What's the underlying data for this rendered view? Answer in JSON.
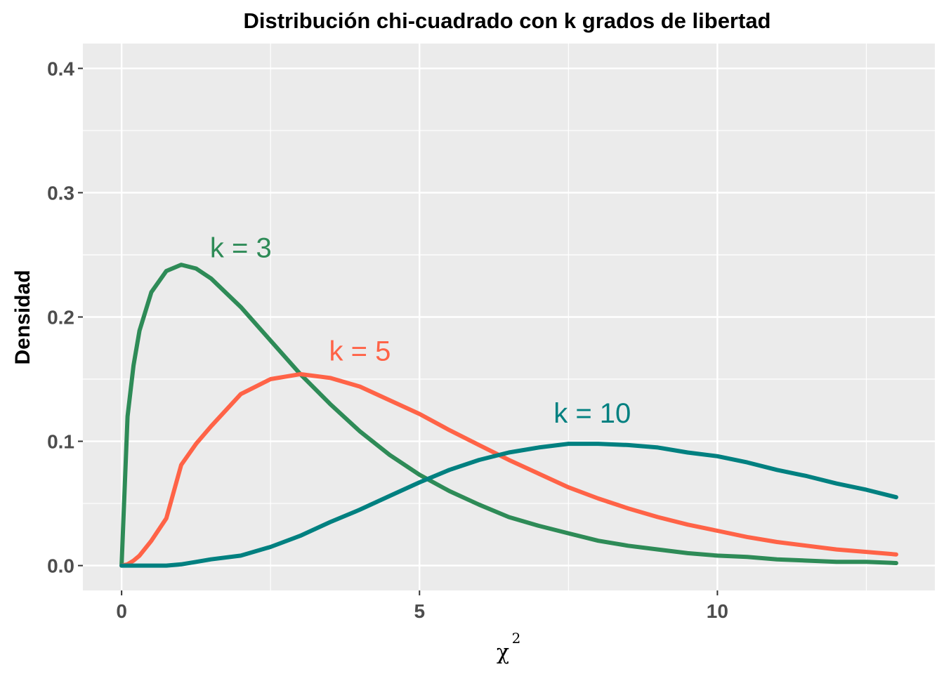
{
  "chart_data": {
    "type": "line",
    "title": "Distribución chi-cuadrado con k grados de libertad",
    "xlabel": "χ",
    "xlabel_superscript": "2",
    "ylabel": "Densidad",
    "xlim": [
      -0.65,
      13.65
    ],
    "ylim": [
      -0.02,
      0.42
    ],
    "xticks": [
      0,
      5,
      10
    ],
    "xtick_labels": [
      "0",
      "5",
      "10"
    ],
    "yticks": [
      0.0,
      0.1,
      0.2,
      0.3,
      0.4
    ],
    "ytick_labels": [
      "0.0",
      "0.1",
      "0.2",
      "0.3",
      "0.4"
    ],
    "grid": true,
    "background_color": "#ebebeb",
    "grid_color": "#ffffff",
    "x": [
      0,
      0.1,
      0.2,
      0.3,
      0.5,
      0.75,
      1,
      1.25,
      1.5,
      2,
      2.5,
      3,
      3.5,
      4,
      4.5,
      5,
      5.5,
      6,
      6.5,
      7,
      7.5,
      8,
      8.5,
      9,
      9.5,
      10,
      10.5,
      11,
      11.5,
      12,
      12.5,
      13
    ],
    "series": [
      {
        "name": "k = 3",
        "color": "#2e8b57",
        "values": [
          0,
          0.12,
          0.161,
          0.189,
          0.22,
          0.237,
          0.242,
          0.239,
          0.231,
          0.208,
          0.181,
          0.154,
          0.13,
          0.108,
          0.089,
          0.073,
          0.06,
          0.049,
          0.039,
          0.032,
          0.026,
          0.02,
          0.016,
          0.013,
          0.01,
          0.008,
          0.007,
          0.005,
          0.004,
          0.003,
          0.003,
          0.002
        ],
        "label_x": 2.0,
        "label_y": 0.248
      },
      {
        "name": "k = 5",
        "color": "#ff6347",
        "values": [
          0,
          0.001,
          0.004,
          0.008,
          0.02,
          0.038,
          0.081,
          0.098,
          0.112,
          0.138,
          0.15,
          0.154,
          0.151,
          0.144,
          0.133,
          0.122,
          0.109,
          0.097,
          0.085,
          0.074,
          0.063,
          0.054,
          0.046,
          0.039,
          0.033,
          0.028,
          0.023,
          0.019,
          0.016,
          0.013,
          0.011,
          0.009
        ],
        "label_x": 4.0,
        "label_y": 0.165
      },
      {
        "name": "k = 10",
        "color": "#008080",
        "values": [
          0,
          0.0,
          0.0,
          0.0,
          0.0,
          0.0,
          0.001,
          0.003,
          0.005,
          0.008,
          0.015,
          0.024,
          0.035,
          0.045,
          0.056,
          0.067,
          0.077,
          0.085,
          0.091,
          0.095,
          0.098,
          0.098,
          0.097,
          0.095,
          0.091,
          0.088,
          0.083,
          0.077,
          0.072,
          0.066,
          0.061,
          0.055
        ],
        "label_x": 7.9,
        "label_y": 0.115
      }
    ]
  }
}
